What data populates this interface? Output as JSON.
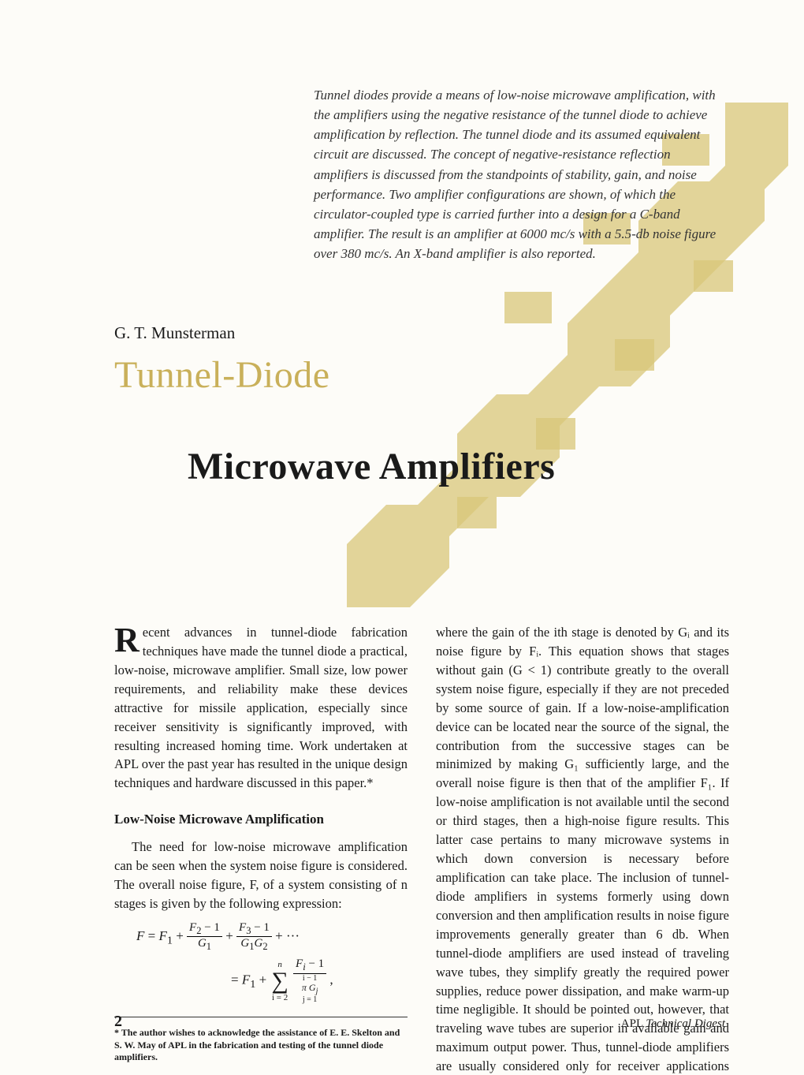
{
  "abstract": "Tunnel diodes provide a means of low-noise microwave amplification, with the amplifiers using the negative resistance of the tunnel diode to achieve amplification by reflection. The tunnel diode and its assumed equivalent circuit are discussed. The concept of negative-resistance reflection amplifiers is discussed from the standpoints of stability, gain, and noise performance. Two amplifier configurations are shown, of which the circulator-coupled type is carried further into a design for a C-band amplifier. The result is an amplifier at 6000 mc/s with a 5.5-db noise figure over 380 mc/s. An X-band amplifier is also reported.",
  "author": "G. T. Munsterman",
  "title_line1": "Tunnel-Diode",
  "title_line2": "Microwave Amplifiers",
  "body": {
    "intro_first_letter": "R",
    "intro_rest": "ecent advances in tunnel-diode fabrication techniques have made the tunnel diode a practical, low-noise, microwave amplifier. Small size, low power requirements, and reliability make these devices attractive for missile application, especially since receiver sensitivity is significantly improved, with resulting increased homing time. Work undertaken at APL over the past year has resulted in the unique design techniques and hardware discussed in this paper.*",
    "section_heading": "Low-Noise Microwave Amplification",
    "para2": "The need for low-noise microwave amplification can be seen when the system noise figure is considered. The overall noise figure, F, of a system consisting of n stages is given by the following expression:",
    "equation_line1_html": "<i>F</i> = <i>F</i><sub>1</sub> + <span class=\"frac\"><span class=\"num\"><i>F</i><sub>2</sub> − 1</span><span class=\"den\"><i>G</i><sub>1</sub></span></span> + <span class=\"frac\"><span class=\"num\"><i>F</i><sub>3</sub> − 1</span><span class=\"den\"><i>G</i><sub>1</sub><i>G</i><sub>2</sub></span></span> + ···",
    "equation_line2_html": "= <i>F</i><sub>1</sub> + <span class=\"sumlimits\"><span style=\"display:block\"><i>n</i></span><span class=\"bigsum\">∑</span><span style=\"display:block\">i = 2</span></span> <span class=\"frac\"><span class=\"num\"><i>F<sub>i</sub></i> − 1</span><span class=\"den\" style=\"font-size:12px\"><span style=\"display:block;font-size:10px\">i − 1</span><i>π</i>&nbsp;<i>G<sub>j</sub></i><span style=\"display:block;font-size:10px\">j = 1</span></span></span> ,",
    "footnote": "* The author wishes to acknowledge the assistance of E. E. Skelton and S. W. May of APL in the fabrication and testing of the tunnel diode amplifiers.",
    "col2": "where the gain of the ith stage is denoted by Gᵢ and its noise figure by Fᵢ. This equation shows that stages without gain (G < 1) contribute greatly to the overall system noise figure, especially if they are not preceded by some source of gain. If a low-noise-amplification device can be located near the source of the signal, the contribution from the successive stages can be minimized by making G₁ sufficiently large, and the overall noise figure is then that of the amplifier F₁. If low-noise amplification is not available until the second or third stages, then a high-noise figure results. This latter case pertains to many microwave systems in which down conversion is necessary before amplification can take place. The inclusion of tunnel-diode amplifiers in systems formerly using down conversion and then amplification results in noise figure improvements generally greater than 6 db. When tunnel-diode amplifiers are used instead of traveling wave tubes, they simplify greatly the required power supplies, reduce power dissipation, and make warm-up time negligible. It should be pointed out, however, that traveling wave tubes are superior in available gain and maximum output power. Thus, tunnel-diode amplifiers are usually considered only for receiver applications where signal levels are well below tunnel-diode saturation."
  },
  "page_number": "2",
  "publication_prefix": "APL ",
  "publication_italic": "Technical Digest",
  "decorative": {
    "shape_color": "#d8c77a",
    "shape_opacity": 0.85
  }
}
